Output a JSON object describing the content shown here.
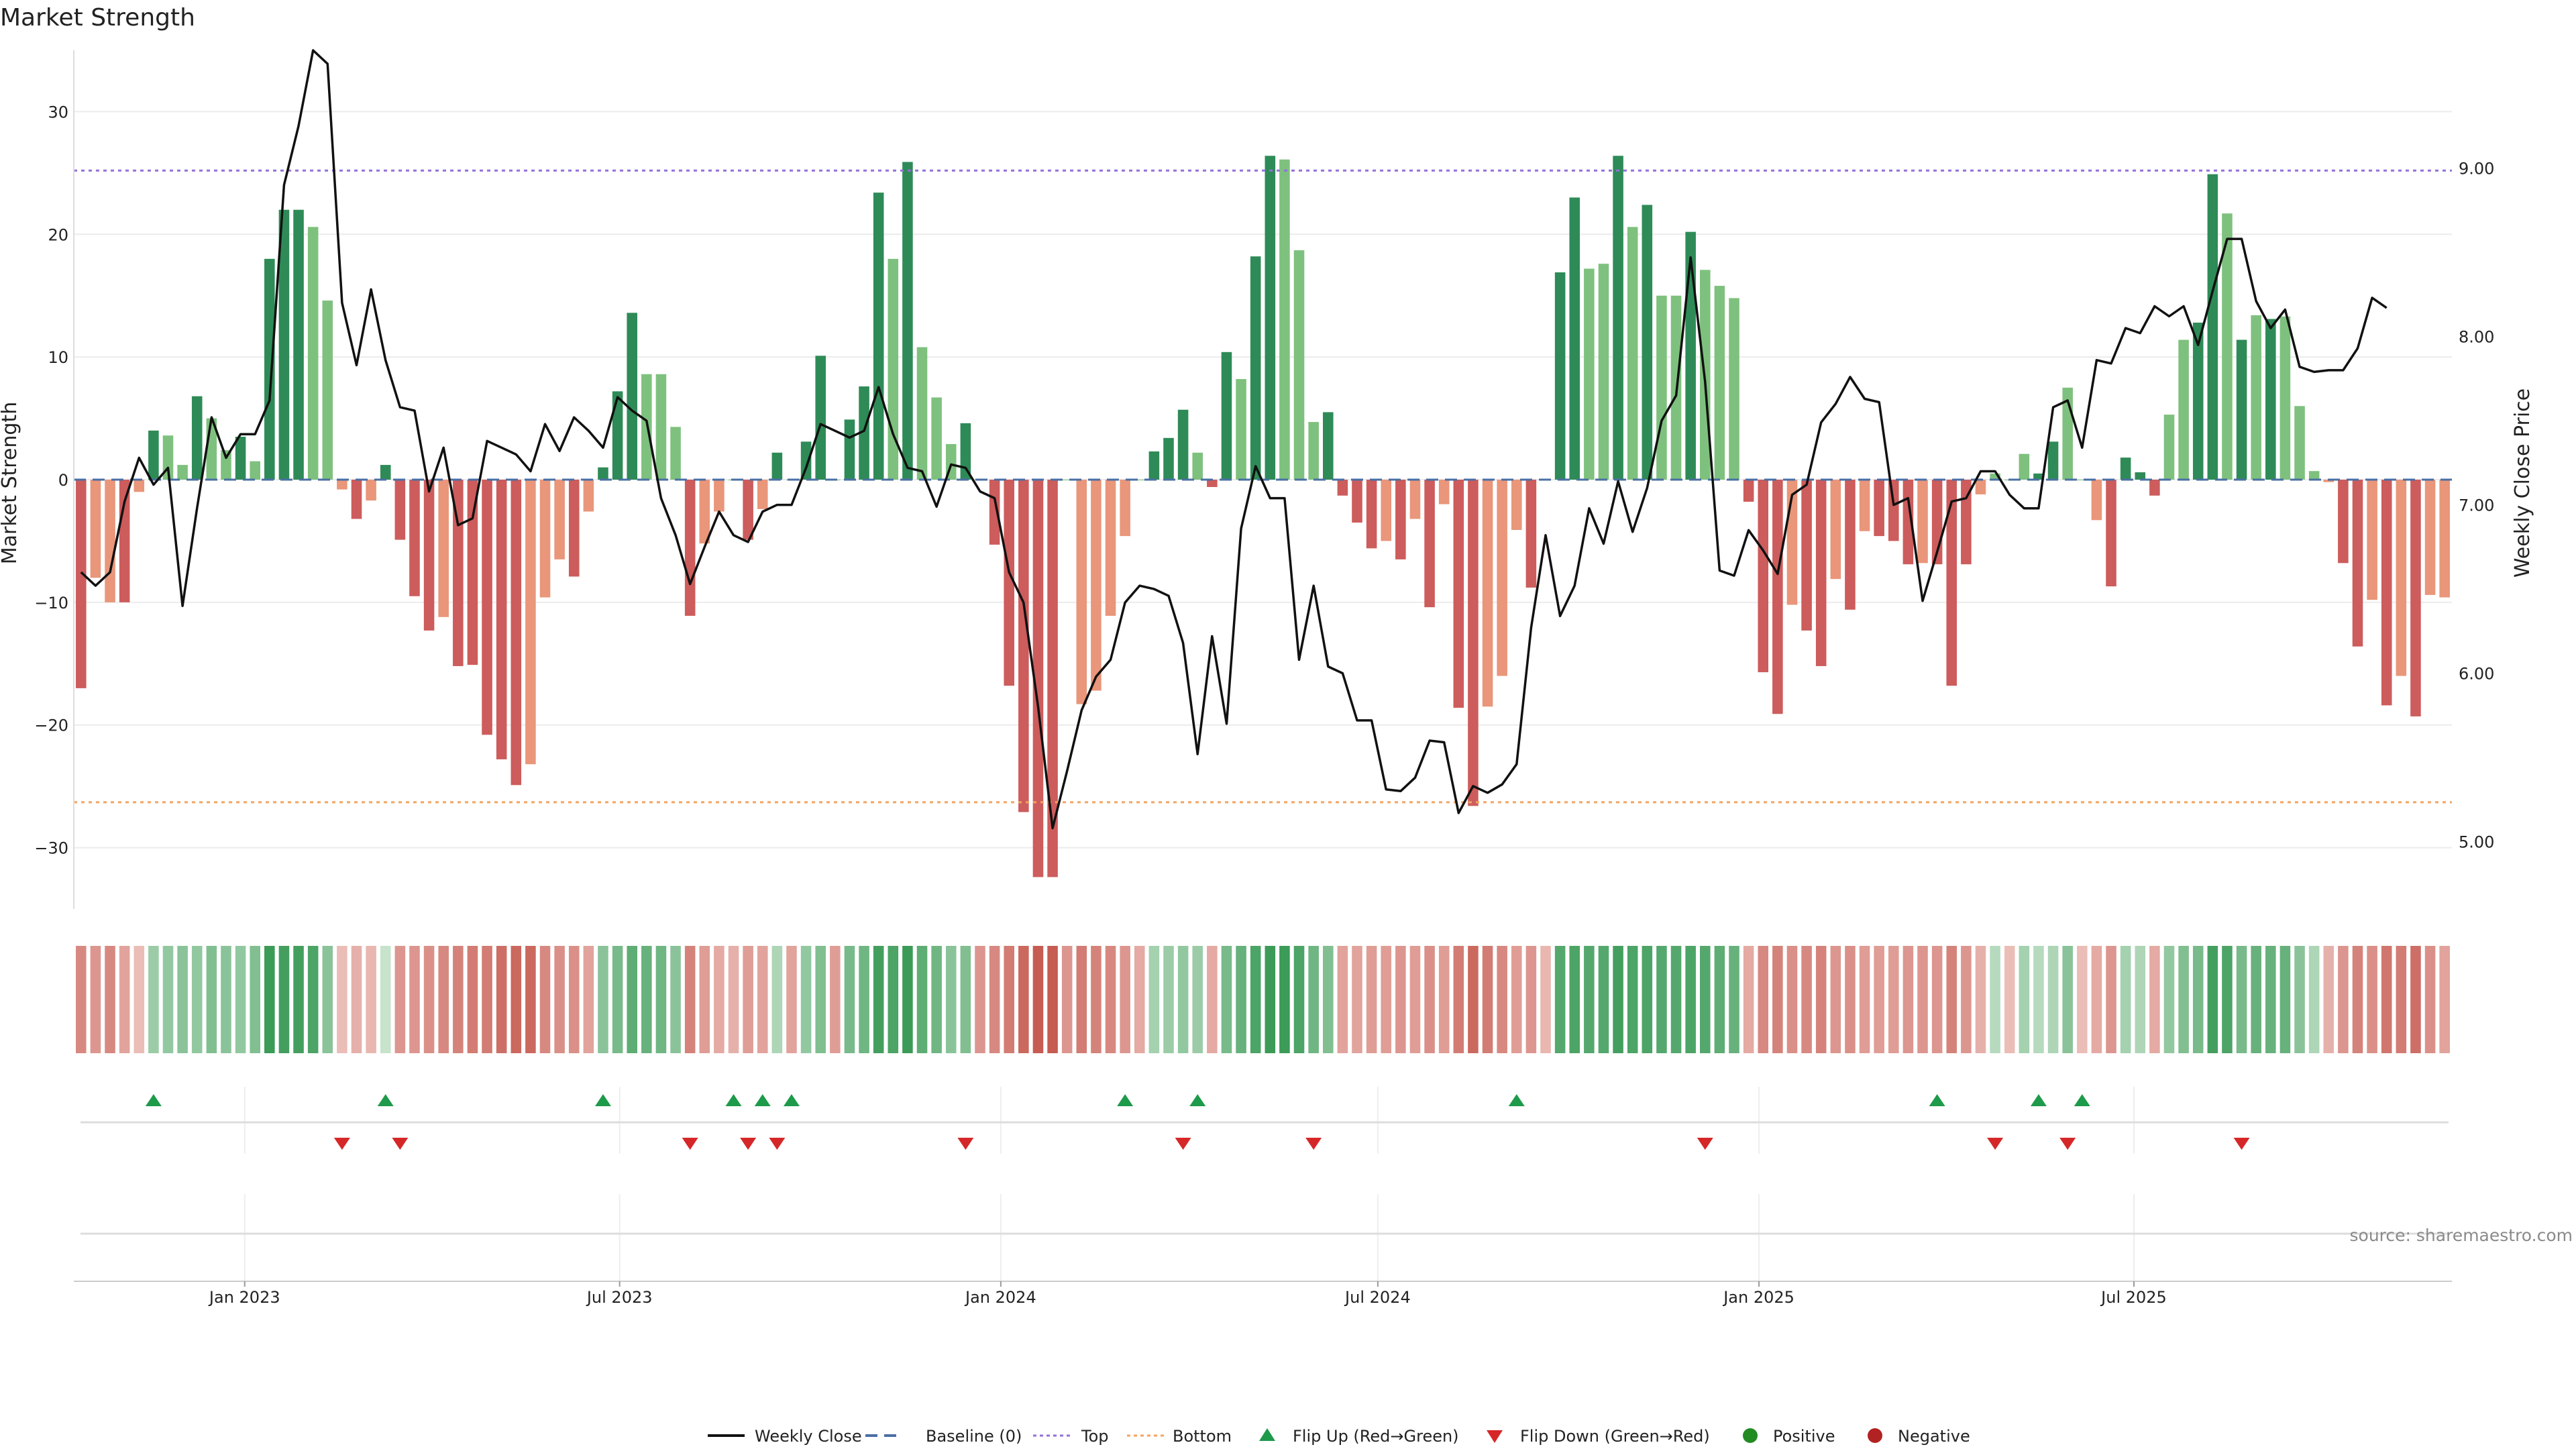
{
  "chart_data": {
    "type": "bar+line",
    "title": "Market Strength",
    "ylabel": "Market Strength",
    "y2label": "Weekly Close Price",
    "ylim": [
      -35,
      35
    ],
    "y2lim": [
      4.6,
      9.7
    ],
    "yticks": [
      30,
      20,
      10,
      0,
      -10,
      -20,
      -30
    ],
    "ytick_labels": [
      "30",
      "20",
      "10",
      "0",
      "−10",
      "−20",
      "−30"
    ],
    "y2ticks": [
      9.0,
      8.0,
      7.0,
      6.0,
      5.0
    ],
    "y2tick_labels": [
      "9.00",
      "8.00",
      "7.00",
      "6.00",
      "5.00"
    ],
    "x_start": "2022-10-14",
    "week_days": 7,
    "xticks": [
      "2023-01-01",
      "2023-07-01",
      "2024-01-01",
      "2024-07-01",
      "2025-01-01",
      "2025-07-01"
    ],
    "xtick_labels": [
      "Jan 2023",
      "Jul 2023",
      "Jan 2024",
      "Jul 2024",
      "Jan 2025",
      "Jul 2025"
    ],
    "top_line": 25.2,
    "bottom_line": -26.3,
    "strength": [
      -17,
      -8,
      -10,
      -10,
      -1,
      4,
      3.6,
      1.2,
      6.8,
      5,
      2.4,
      3.5,
      1.5,
      18,
      22,
      22,
      20.6,
      14.6,
      -0.8,
      -3.2,
      -1.7,
      1.2,
      -4.9,
      -9.5,
      -12.3,
      -11.2,
      -15.2,
      -15.1,
      -20.8,
      -22.8,
      -24.9,
      -23.2,
      -9.6,
      -6.5,
      -7.9,
      -2.6,
      1,
      7.2,
      13.6,
      8.6,
      8.6,
      4.3,
      -11.1,
      -5.2,
      -2.6,
      0,
      -4.9,
      -2.4,
      2.2,
      0,
      3.1,
      10.1,
      0,
      4.9,
      7.6,
      23.4,
      18,
      25.9,
      10.8,
      6.7,
      2.9,
      4.6,
      0,
      -5.3,
      -16.8,
      -27.1,
      -32.4,
      -32.4,
      0,
      -18.3,
      -17.2,
      -11.1,
      -4.6,
      0,
      2.3,
      3.4,
      5.7,
      2.2,
      -0.6,
      10.4,
      8.2,
      18.2,
      26.4,
      26.1,
      18.7,
      4.7,
      5.5,
      -1.3,
      -3.5,
      -5.6,
      -5,
      -6.5,
      -3.2,
      -10.4,
      -2,
      -18.6,
      -26.6,
      -18.5,
      -16,
      -4.1,
      -8.8,
      0,
      16.9,
      23,
      17.2,
      17.6,
      26.4,
      20.6,
      22.4,
      15,
      15,
      20.2,
      17.1,
      15.8,
      14.8,
      -1.8,
      -15.7,
      -19.1,
      -10.2,
      -12.3,
      -15.2,
      -8.1,
      -10.6,
      -4.2,
      -4.6,
      -5,
      -6.9,
      -6.8,
      -6.9,
      -16.8,
      -6.9,
      -1.2,
      0.5,
      0,
      2.1,
      0.5,
      3.1,
      7.5,
      0,
      -3.3,
      -8.7,
      1.8,
      0.6,
      -1.3,
      5.3,
      11.4,
      12.8,
      24.9,
      21.7,
      11.4,
      13.4,
      13.1,
      13.3,
      6,
      0.7,
      -0.2,
      -6.8,
      -13.6,
      -9.8,
      -18.4,
      -16,
      -19.3,
      -9.4,
      -9.6
    ],
    "strength_shade": [
      2,
      1,
      1,
      2,
      1,
      2,
      1,
      1,
      2,
      1,
      1,
      2,
      1,
      2,
      2,
      2,
      1,
      1,
      1,
      2,
      1,
      2,
      2,
      2,
      2,
      1,
      2,
      2,
      2,
      2,
      2,
      1,
      1,
      1,
      2,
      1,
      2,
      2,
      2,
      1,
      1,
      1,
      2,
      1,
      1,
      1,
      2,
      1,
      2,
      1,
      2,
      2,
      1,
      2,
      2,
      2,
      1,
      2,
      1,
      1,
      1,
      2,
      1,
      2,
      2,
      2,
      2,
      2,
      1,
      1,
      1,
      1,
      1,
      1,
      2,
      2,
      2,
      1,
      2,
      2,
      1,
      2,
      2,
      1,
      1,
      1,
      2,
      2,
      2,
      2,
      1,
      2,
      1,
      2,
      1,
      2,
      2,
      1,
      1,
      1,
      2,
      1,
      2,
      2,
      1,
      1,
      2,
      1,
      2,
      1,
      1,
      2,
      1,
      1,
      1,
      2,
      2,
      2,
      1,
      2,
      2,
      1,
      2,
      1,
      2,
      2,
      2,
      1,
      2,
      2,
      2,
      1,
      1,
      1,
      1,
      2,
      2,
      1,
      1,
      1,
      2,
      2,
      2,
      2,
      1,
      1,
      2,
      2,
      1,
      2,
      1,
      2,
      1,
      1,
      1,
      1,
      2,
      2,
      1,
      2,
      1,
      2,
      1,
      1,
      2,
      2
    ],
    "weekly_close": [
      6.6,
      6.52,
      6.6,
      7.02,
      7.28,
      7.12,
      7.22,
      6.4,
      6.98,
      7.52,
      7.28,
      7.42,
      7.42,
      7.62,
      8.9,
      9.25,
      9.7,
      9.62,
      8.2,
      7.83,
      8.28,
      7.86,
      7.58,
      7.56,
      7.08,
      7.34,
      6.88,
      6.92,
      7.38,
      7.34,
      7.3,
      7.2,
      7.48,
      7.32,
      7.52,
      7.44,
      7.34,
      7.64,
      7.56,
      7.5,
      7.04,
      6.82,
      6.53,
      6.75,
      6.96,
      6.82,
      6.78,
      6.96,
      7.0,
      7.0,
      7.22,
      7.48,
      7.44,
      7.4,
      7.44,
      7.7,
      7.42,
      7.22,
      7.2,
      6.99,
      7.24,
      7.22,
      7.08,
      7.04,
      6.6,
      6.42,
      5.8,
      5.08,
      5.42,
      5.78,
      5.98,
      6.08,
      6.42,
      6.52,
      6.5,
      6.46,
      6.18,
      5.52,
      6.22,
      5.7,
      6.86,
      7.23,
      7.04,
      7.04,
      6.08,
      6.52,
      6.04,
      6.0,
      5.72,
      5.72,
      5.31,
      5.3,
      5.38,
      5.6,
      5.59,
      5.17,
      5.33,
      5.29,
      5.34,
      5.46,
      6.27,
      6.82,
      6.34,
      6.52,
      6.98,
      6.77,
      7.14,
      6.84,
      7.1,
      7.5,
      7.65,
      8.47,
      7.73,
      6.61,
      6.58,
      6.85,
      6.73,
      6.59,
      7.06,
      7.12,
      7.49,
      7.6,
      7.76,
      7.63,
      7.61,
      7.0,
      7.04,
      6.43,
      6.72,
      7.02,
      7.04,
      7.2,
      7.2,
      7.06,
      6.98,
      6.98,
      7.58,
      7.62,
      7.34,
      7.86,
      7.84,
      8.05,
      8.02,
      8.18,
      8.12,
      8.18,
      7.95,
      8.27,
      8.58,
      8.58,
      8.21,
      8.05,
      8.16,
      7.82,
      7.79,
      7.8,
      7.8,
      7.93,
      8.23,
      8.17
    ],
    "heatmap_intensity": [
      0.6,
      0.5,
      0.6,
      0.4,
      0.2,
      0.4,
      0.45,
      0.5,
      0.45,
      0.55,
      0.5,
      0.45,
      0.55,
      0.95,
      0.9,
      0.9,
      0.85,
      0.5,
      0.2,
      0.3,
      0.25,
      0.15,
      0.5,
      0.5,
      0.55,
      0.6,
      0.65,
      0.7,
      0.7,
      0.8,
      0.85,
      0.85,
      0.6,
      0.55,
      0.55,
      0.4,
      0.5,
      0.6,
      0.75,
      0.7,
      0.65,
      0.5,
      0.65,
      0.45,
      0.35,
      0.3,
      0.45,
      0.4,
      0.3,
      0.4,
      0.45,
      0.55,
      0.45,
      0.6,
      0.65,
      0.9,
      0.85,
      0.95,
      0.75,
      0.65,
      0.5,
      0.55,
      0.5,
      0.6,
      0.7,
      0.85,
      0.95,
      0.95,
      0.5,
      0.7,
      0.65,
      0.6,
      0.5,
      0.35,
      0.35,
      0.4,
      0.45,
      0.4,
      0.35,
      0.6,
      0.7,
      0.85,
      0.95,
      0.95,
      0.85,
      0.65,
      0.55,
      0.4,
      0.4,
      0.45,
      0.45,
      0.5,
      0.45,
      0.55,
      0.45,
      0.7,
      0.85,
      0.7,
      0.6,
      0.45,
      0.5,
      0.25,
      0.8,
      0.85,
      0.8,
      0.8,
      0.9,
      0.85,
      0.85,
      0.8,
      0.8,
      0.85,
      0.8,
      0.75,
      0.7,
      0.35,
      0.6,
      0.65,
      0.55,
      0.6,
      0.65,
      0.5,
      0.55,
      0.45,
      0.45,
      0.45,
      0.5,
      0.5,
      0.5,
      0.65,
      0.5,
      0.3,
      0.25,
      0.2,
      0.35,
      0.25,
      0.3,
      0.5,
      0.2,
      0.35,
      0.5,
      0.35,
      0.3,
      0.35,
      0.45,
      0.55,
      0.6,
      0.9,
      0.85,
      0.6,
      0.7,
      0.7,
      0.7,
      0.5,
      0.3,
      0.3,
      0.5,
      0.65,
      0.55,
      0.75,
      0.7,
      0.8,
      0.55,
      0.4
    ],
    "flip_up_weeks": [
      5,
      21,
      36,
      45,
      47,
      49,
      72,
      77,
      99,
      128,
      135,
      138
    ],
    "flip_down_weeks": [
      18,
      22,
      42,
      46,
      48,
      61,
      76,
      85,
      112,
      132,
      137,
      149
    ],
    "legend": [
      "Weekly Close",
      "Baseline (0)",
      "Top",
      "Bottom",
      "Flip Up (Red→Green)",
      "Flip Down (Green→Red)",
      "Positive",
      "Negative"
    ],
    "source": "source: sharemaestro.com",
    "colors": {
      "pos_dark": "#2e8b57",
      "pos_light": "#7ec17e",
      "neg_dark": "#cd5c5c",
      "neg_light": "#e9967a",
      "top": "#9370db",
      "bottom": "#f4a460",
      "baseline": "#4a6fa5",
      "close": "#111111",
      "flip_up": "#1e9a4b",
      "flip_down": "#d62728",
      "positive": "#228b22",
      "negative": "#b22222"
    }
  }
}
